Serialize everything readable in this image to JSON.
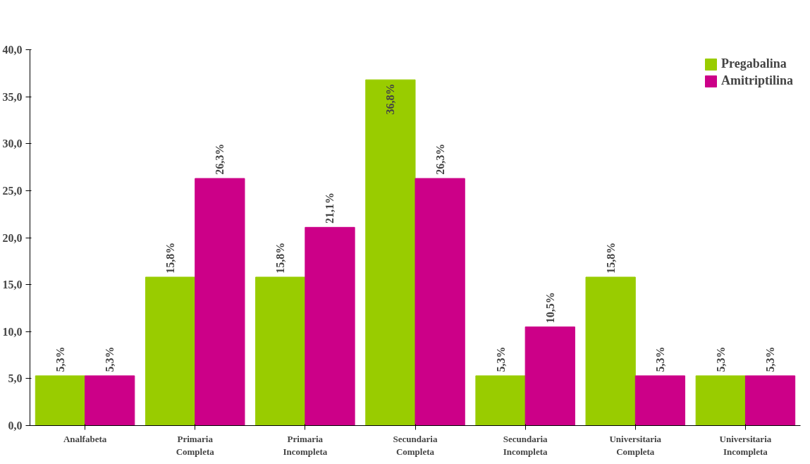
{
  "chart_data": {
    "type": "bar",
    "categories": [
      "Analfabeta",
      "Primaria\nCompleta",
      "Primaria\nIncompleta",
      "Secundaria\nCompleta",
      "Secundaria\nIncompleta",
      "Universitaria\nCompleta",
      "Universitaria\nIncompleta"
    ],
    "series": [
      {
        "name": "Pregabalina",
        "color": "#99cc00",
        "values": [
          5.3,
          15.8,
          15.8,
          36.8,
          5.3,
          15.8,
          5.3
        ],
        "value_labels": [
          "5,3%",
          "15,8%",
          "15,8%",
          "36,8%",
          "5,3%",
          "15,8%",
          "5,3%"
        ]
      },
      {
        "name": "Amitriptilina",
        "color": "#cc0088",
        "values": [
          5.3,
          26.3,
          21.1,
          26.3,
          10.5,
          5.3,
          5.3
        ],
        "value_labels": [
          "5,3%",
          "26,3%",
          "21,1%",
          "26,3%",
          "10,5%",
          "5,3%",
          "5,3%"
        ]
      }
    ],
    "ylim": [
      0,
      40
    ],
    "yticks": [
      {
        "value": 0,
        "label": "0,0"
      },
      {
        "value": 5,
        "label": "5,0"
      },
      {
        "value": 10,
        "label": "10,0"
      },
      {
        "value": 15,
        "label": "15,0"
      },
      {
        "value": 20,
        "label": "20,0"
      },
      {
        "value": 25,
        "label": "25,0"
      },
      {
        "value": 30,
        "label": "30,0"
      },
      {
        "value": 35,
        "label": "35,0"
      },
      {
        "value": 40,
        "label": "40,0"
      }
    ],
    "legend": "top right",
    "grid": false
  }
}
